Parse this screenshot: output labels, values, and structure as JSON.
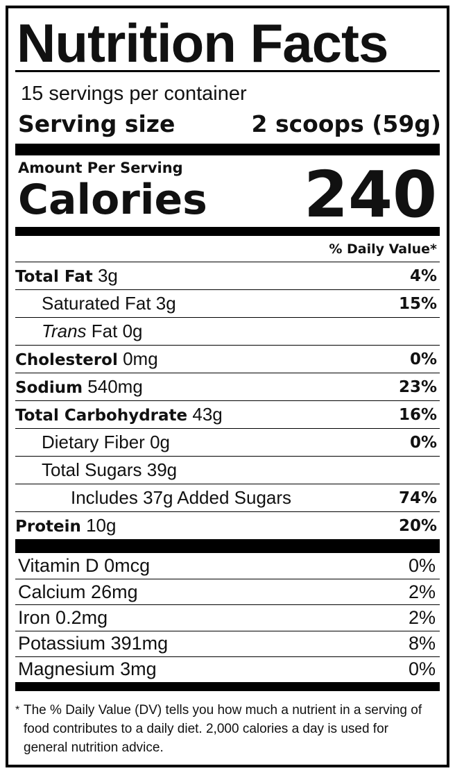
{
  "title": "Nutrition Facts",
  "servings": "15 servings per container",
  "serving_size": {
    "label": "Serving size",
    "value": "2 scoops (59g)"
  },
  "amount_per_serving": "Amount Per Serving",
  "calories": {
    "label": "Calories",
    "value": "240"
  },
  "dv_header": "% Daily Value*",
  "nutrients": [
    {
      "name": "Total Fat",
      "amount": "3g",
      "dv": "4%"
    },
    {
      "name": "Saturated Fat",
      "amount": "3g",
      "dv": "15%"
    },
    {
      "name_italic": "Trans",
      "name": "Fat",
      "amount": "0g"
    },
    {
      "name": "Cholesterol",
      "amount": "0mg",
      "dv": "0%"
    },
    {
      "name": "Sodium",
      "amount": "540mg",
      "dv": "23%"
    },
    {
      "name": "Total Carbohydrate",
      "amount": "43g",
      "dv": "16%"
    },
    {
      "name": "Dietary Fiber",
      "amount": "0g",
      "dv": "0%"
    },
    {
      "name": "Total Sugars",
      "amount": "39g"
    },
    {
      "name": "Includes 37g Added Sugars",
      "dv": "74%"
    },
    {
      "name": "Protein",
      "amount": "10g",
      "dv": "20%"
    }
  ],
  "vitamins": [
    {
      "name": "Vitamin D",
      "amount": "0mcg",
      "dv": "0%"
    },
    {
      "name": "Calcium",
      "amount": "26mg",
      "dv": "2%"
    },
    {
      "name": "Iron",
      "amount": "0.2mg",
      "dv": "2%"
    },
    {
      "name": "Potassium",
      "amount": "391mg",
      "dv": "8%"
    },
    {
      "name": "Magnesium",
      "amount": "3mg",
      "dv": "0%"
    }
  ],
  "footnote": {
    "marker": "*",
    "text": "The % Daily Value (DV) tells you how much a nutrient in a serving of food contributes to a daily diet. 2,000 calories a day is used for general nutrition advice."
  }
}
